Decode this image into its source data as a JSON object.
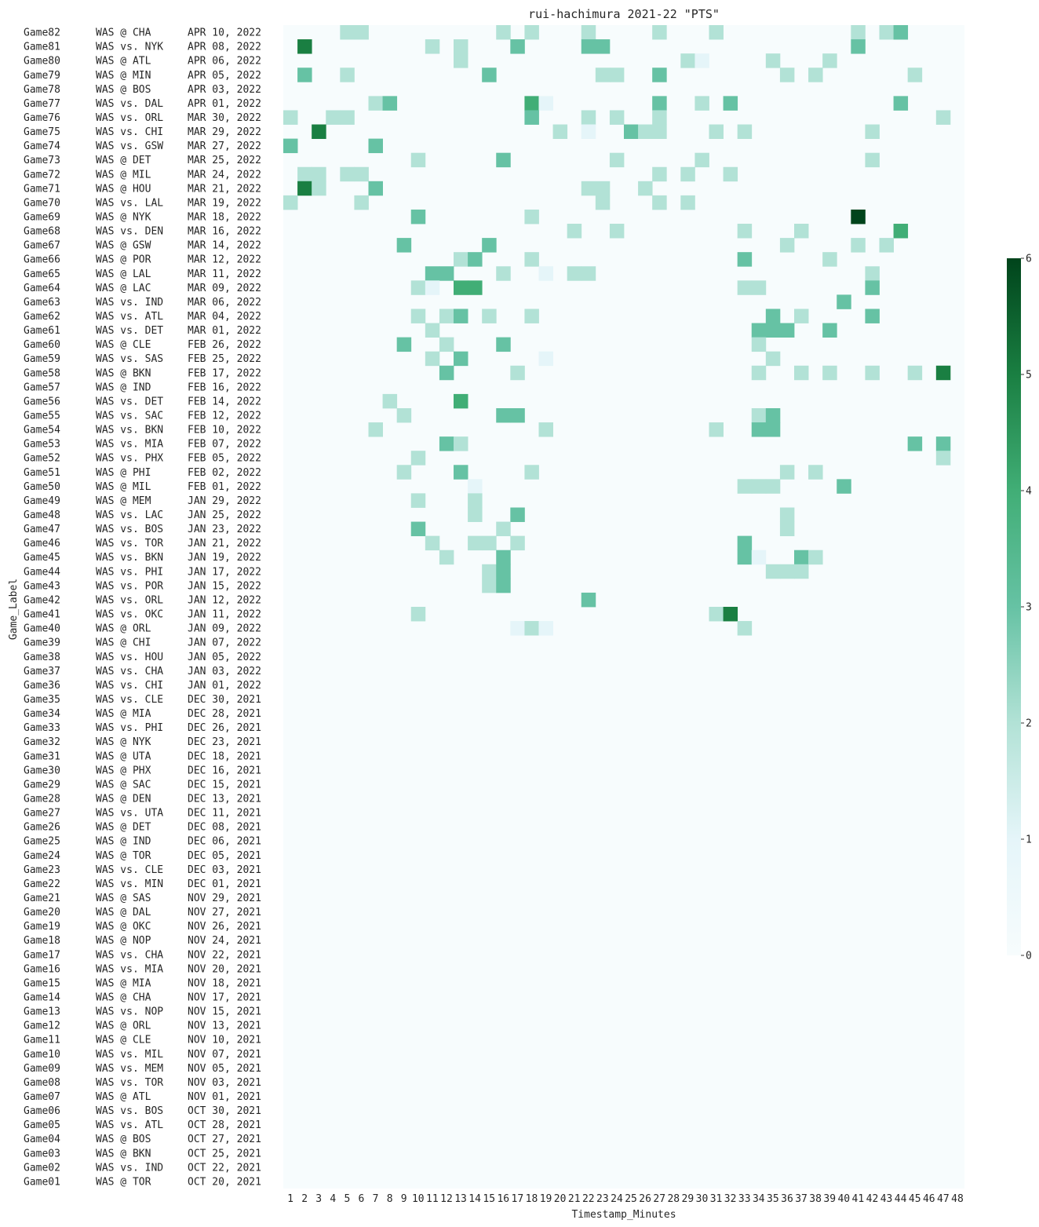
{
  "chart_data": {
    "type": "heatmap",
    "title": "rui-hachimura 2021-22 \"PTS\"",
    "xlabel": "Timestamp_Minutes",
    "ylabel": "Game_Label",
    "x": [
      1,
      2,
      3,
      4,
      5,
      6,
      7,
      8,
      9,
      10,
      11,
      12,
      13,
      14,
      15,
      16,
      17,
      18,
      19,
      20,
      21,
      22,
      23,
      24,
      25,
      26,
      27,
      28,
      29,
      30,
      31,
      32,
      33,
      34,
      35,
      36,
      37,
      38,
      39,
      40,
      41,
      42,
      43,
      44,
      45,
      46,
      47,
      48
    ],
    "rows": [
      {
        "label": "Game82",
        "matchup": "WAS @ CHA",
        "date": "APR 10, 2022"
      },
      {
        "label": "Game81",
        "matchup": "WAS vs. NYK",
        "date": "APR 08, 2022"
      },
      {
        "label": "Game80",
        "matchup": "WAS @ ATL",
        "date": "APR 06, 2022"
      },
      {
        "label": "Game79",
        "matchup": "WAS @ MIN",
        "date": "APR 05, 2022"
      },
      {
        "label": "Game78",
        "matchup": "WAS @ BOS",
        "date": "APR 03, 2022"
      },
      {
        "label": "Game77",
        "matchup": "WAS vs. DAL",
        "date": "APR 01, 2022"
      },
      {
        "label": "Game76",
        "matchup": "WAS vs. ORL",
        "date": "MAR 30, 2022"
      },
      {
        "label": "Game75",
        "matchup": "WAS vs. CHI",
        "date": "MAR 29, 2022"
      },
      {
        "label": "Game74",
        "matchup": "WAS vs. GSW",
        "date": "MAR 27, 2022"
      },
      {
        "label": "Game73",
        "matchup": "WAS @ DET",
        "date": "MAR 25, 2022"
      },
      {
        "label": "Game72",
        "matchup": "WAS @ MIL",
        "date": "MAR 24, 2022"
      },
      {
        "label": "Game71",
        "matchup": "WAS @ HOU",
        "date": "MAR 21, 2022"
      },
      {
        "label": "Game70",
        "matchup": "WAS vs. LAL",
        "date": "MAR 19, 2022"
      },
      {
        "label": "Game69",
        "matchup": "WAS @ NYK",
        "date": "MAR 18, 2022"
      },
      {
        "label": "Game68",
        "matchup": "WAS vs. DEN",
        "date": "MAR 16, 2022"
      },
      {
        "label": "Game67",
        "matchup": "WAS @ GSW",
        "date": "MAR 14, 2022"
      },
      {
        "label": "Game66",
        "matchup": "WAS @ POR",
        "date": "MAR 12, 2022"
      },
      {
        "label": "Game65",
        "matchup": "WAS @ LAL",
        "date": "MAR 11, 2022"
      },
      {
        "label": "Game64",
        "matchup": "WAS @ LAC",
        "date": "MAR 09, 2022"
      },
      {
        "label": "Game63",
        "matchup": "WAS vs. IND",
        "date": "MAR 06, 2022"
      },
      {
        "label": "Game62",
        "matchup": "WAS vs. ATL",
        "date": "MAR 04, 2022"
      },
      {
        "label": "Game61",
        "matchup": "WAS vs. DET",
        "date": "MAR 01, 2022"
      },
      {
        "label": "Game60",
        "matchup": "WAS @ CLE",
        "date": "FEB 26, 2022"
      },
      {
        "label": "Game59",
        "matchup": "WAS vs. SAS",
        "date": "FEB 25, 2022"
      },
      {
        "label": "Game58",
        "matchup": "WAS @ BKN",
        "date": "FEB 17, 2022"
      },
      {
        "label": "Game57",
        "matchup": "WAS @ IND",
        "date": "FEB 16, 2022"
      },
      {
        "label": "Game56",
        "matchup": "WAS vs. DET",
        "date": "FEB 14, 2022"
      },
      {
        "label": "Game55",
        "matchup": "WAS vs. SAC",
        "date": "FEB 12, 2022"
      },
      {
        "label": "Game54",
        "matchup": "WAS vs. BKN",
        "date": "FEB 10, 2022"
      },
      {
        "label": "Game53",
        "matchup": "WAS vs. MIA",
        "date": "FEB 07, 2022"
      },
      {
        "label": "Game52",
        "matchup": "WAS vs. PHX",
        "date": "FEB 05, 2022"
      },
      {
        "label": "Game51",
        "matchup": "WAS @ PHI",
        "date": "FEB 02, 2022"
      },
      {
        "label": "Game50",
        "matchup": "WAS @ MIL",
        "date": "FEB 01, 2022"
      },
      {
        "label": "Game49",
        "matchup": "WAS @ MEM",
        "date": "JAN 29, 2022"
      },
      {
        "label": "Game48",
        "matchup": "WAS vs. LAC",
        "date": "JAN 25, 2022"
      },
      {
        "label": "Game47",
        "matchup": "WAS vs. BOS",
        "date": "JAN 23, 2022"
      },
      {
        "label": "Game46",
        "matchup": "WAS vs. TOR",
        "date": "JAN 21, 2022"
      },
      {
        "label": "Game45",
        "matchup": "WAS vs. BKN",
        "date": "JAN 19, 2022"
      },
      {
        "label": "Game44",
        "matchup": "WAS vs. PHI",
        "date": "JAN 17, 2022"
      },
      {
        "label": "Game43",
        "matchup": "WAS vs. POR",
        "date": "JAN 15, 2022"
      },
      {
        "label": "Game42",
        "matchup": "WAS vs. ORL",
        "date": "JAN 12, 2022"
      },
      {
        "label": "Game41",
        "matchup": "WAS vs. OKC",
        "date": "JAN 11, 2022"
      },
      {
        "label": "Game40",
        "matchup": "WAS @ ORL",
        "date": "JAN 09, 2022"
      },
      {
        "label": "Game39",
        "matchup": "WAS @ CHI",
        "date": "JAN 07, 2022"
      },
      {
        "label": "Game38",
        "matchup": "WAS vs. HOU",
        "date": "JAN 05, 2022"
      },
      {
        "label": "Game37",
        "matchup": "WAS vs. CHA",
        "date": "JAN 03, 2022"
      },
      {
        "label": "Game36",
        "matchup": "WAS vs. CHI",
        "date": "JAN 01, 2022"
      },
      {
        "label": "Game35",
        "matchup": "WAS vs. CLE",
        "date": "DEC 30, 2021"
      },
      {
        "label": "Game34",
        "matchup": "WAS @ MIA",
        "date": "DEC 28, 2021"
      },
      {
        "label": "Game33",
        "matchup": "WAS vs. PHI",
        "date": "DEC 26, 2021"
      },
      {
        "label": "Game32",
        "matchup": "WAS @ NYK",
        "date": "DEC 23, 2021"
      },
      {
        "label": "Game31",
        "matchup": "WAS @ UTA",
        "date": "DEC 18, 2021"
      },
      {
        "label": "Game30",
        "matchup": "WAS @ PHX",
        "date": "DEC 16, 2021"
      },
      {
        "label": "Game29",
        "matchup": "WAS @ SAC",
        "date": "DEC 15, 2021"
      },
      {
        "label": "Game28",
        "matchup": "WAS @ DEN",
        "date": "DEC 13, 2021"
      },
      {
        "label": "Game27",
        "matchup": "WAS vs. UTA",
        "date": "DEC 11, 2021"
      },
      {
        "label": "Game26",
        "matchup": "WAS @ DET",
        "date": "DEC 08, 2021"
      },
      {
        "label": "Game25",
        "matchup": "WAS @ IND",
        "date": "DEC 06, 2021"
      },
      {
        "label": "Game24",
        "matchup": "WAS @ TOR",
        "date": "DEC 05, 2021"
      },
      {
        "label": "Game23",
        "matchup": "WAS vs. CLE",
        "date": "DEC 03, 2021"
      },
      {
        "label": "Game22",
        "matchup": "WAS vs. MIN",
        "date": "DEC 01, 2021"
      },
      {
        "label": "Game21",
        "matchup": "WAS @ SAS",
        "date": "NOV 29, 2021"
      },
      {
        "label": "Game20",
        "matchup": "WAS @ DAL",
        "date": "NOV 27, 2021"
      },
      {
        "label": "Game19",
        "matchup": "WAS @ OKC",
        "date": "NOV 26, 2021"
      },
      {
        "label": "Game18",
        "matchup": "WAS @ NOP",
        "date": "NOV 24, 2021"
      },
      {
        "label": "Game17",
        "matchup": "WAS vs. CHA",
        "date": "NOV 22, 2021"
      },
      {
        "label": "Game16",
        "matchup": "WAS vs. MIA",
        "date": "NOV 20, 2021"
      },
      {
        "label": "Game15",
        "matchup": "WAS @ MIA",
        "date": "NOV 18, 2021"
      },
      {
        "label": "Game14",
        "matchup": "WAS @ CHA",
        "date": "NOV 17, 2021"
      },
      {
        "label": "Game13",
        "matchup": "WAS vs. NOP",
        "date": "NOV 15, 2021"
      },
      {
        "label": "Game12",
        "matchup": "WAS @ ORL",
        "date": "NOV 13, 2021"
      },
      {
        "label": "Game11",
        "matchup": "WAS @ CLE",
        "date": "NOV 10, 2021"
      },
      {
        "label": "Game10",
        "matchup": "WAS vs. MIL",
        "date": "NOV 07, 2021"
      },
      {
        "label": "Game09",
        "matchup": "WAS vs. MEM",
        "date": "NOV 05, 2021"
      },
      {
        "label": "Game08",
        "matchup": "WAS vs. TOR",
        "date": "NOV 03, 2021"
      },
      {
        "label": "Game07",
        "matchup": "WAS @ ATL",
        "date": "NOV 01, 2021"
      },
      {
        "label": "Game06",
        "matchup": "WAS vs. BOS",
        "date": "OCT 30, 2021"
      },
      {
        "label": "Game05",
        "matchup": "WAS vs. ATL",
        "date": "OCT 28, 2021"
      },
      {
        "label": "Game04",
        "matchup": "WAS @ BOS",
        "date": "OCT 27, 2021"
      },
      {
        "label": "Game03",
        "matchup": "WAS @ BKN",
        "date": "OCT 25, 2021"
      },
      {
        "label": "Game02",
        "matchup": "WAS vs. IND",
        "date": "OCT 22, 2021"
      },
      {
        "label": "Game01",
        "matchup": "WAS @ TOR",
        "date": "OCT 20, 2021"
      }
    ],
    "cells": {
      "Game82": {
        "5": 2,
        "6": 2,
        "16": 2,
        "18": 2,
        "22": 2,
        "27": 2,
        "31": 2,
        "41": 2,
        "43": 2,
        "44": 3
      },
      "Game81": {
        "2": 5,
        "11": 2,
        "13": 2,
        "17": 3,
        "22": 3,
        "23": 3,
        "41": 3
      },
      "Game80": {
        "13": 2,
        "29": 2,
        "30": 1,
        "35": 2,
        "39": 2
      },
      "Game79": {
        "2": 3,
        "5": 2,
        "15": 3,
        "23": 2,
        "24": 2,
        "27": 3,
        "36": 2,
        "38": 2,
        "45": 2
      },
      "Game77": {
        "7": 2,
        "8": 3,
        "18": 4,
        "19": 1,
        "27": 3,
        "30": 2,
        "32": 3,
        "44": 3
      },
      "Game76": {
        "1": 2,
        "4": 2,
        "5": 2,
        "18": 3,
        "22": 2,
        "24": 2,
        "27": 2,
        "47": 2
      },
      "Game75": {
        "3": 5,
        "20": 2,
        "22": 1,
        "25": 3,
        "26": 2,
        "27": 2,
        "31": 2,
        "33": 2,
        "42": 2
      },
      "Game74": {
        "1": 3,
        "7": 3
      },
      "Game73": {
        "10": 2,
        "16": 3,
        "24": 2,
        "30": 2,
        "42": 2
      },
      "Game72": {
        "2": 2,
        "3": 2,
        "5": 2,
        "6": 2,
        "27": 2,
        "29": 2,
        "32": 2
      },
      "Game71": {
        "2": 5,
        "3": 2,
        "7": 3,
        "22": 2,
        "23": 2,
        "26": 2
      },
      "Game70": {
        "1": 2,
        "6": 2,
        "23": 2,
        "27": 2,
        "29": 2
      },
      "Game69": {
        "10": 3,
        "18": 2,
        "41": 6
      },
      "Game68": {
        "21": 2,
        "24": 2,
        "33": 2,
        "37": 2,
        "44": 4
      },
      "Game67": {
        "9": 3,
        "15": 3,
        "36": 2,
        "41": 2,
        "43": 2
      },
      "Game66": {
        "13": 2,
        "14": 3,
        "18": 2,
        "33": 3,
        "39": 2
      },
      "Game65": {
        "11": 3,
        "12": 3,
        "16": 2,
        "19": 1,
        "21": 2,
        "22": 2,
        "42": 2
      },
      "Game64": {
        "10": 2,
        "11": 1,
        "13": 4,
        "14": 4,
        "33": 2,
        "34": 2,
        "42": 3
      },
      "Game63": {
        "40": 3
      },
      "Game62": {
        "10": 2,
        "12": 2,
        "13": 3,
        "15": 2,
        "18": 2,
        "35": 3,
        "37": 2,
        "42": 3
      },
      "Game61": {
        "11": 2,
        "34": 3,
        "35": 3,
        "36": 3,
        "39": 3
      },
      "Game60": {
        "9": 3,
        "12": 2,
        "16": 3,
        "34": 2
      },
      "Game59": {
        "11": 2,
        "13": 3,
        "19": 1,
        "35": 2
      },
      "Game58": {
        "12": 3,
        "17": 2,
        "34": 2,
        "37": 2,
        "39": 2,
        "42": 2,
        "45": 2,
        "47": 5
      },
      "Game56": {
        "8": 2,
        "13": 4
      },
      "Game55": {
        "9": 2,
        "16": 3,
        "17": 3,
        "34": 2,
        "35": 3
      },
      "Game54": {
        "7": 2,
        "19": 2,
        "31": 2,
        "34": 3,
        "35": 3
      },
      "Game53": {
        "12": 3,
        "13": 2,
        "45": 3,
        "47": 3
      },
      "Game52": {
        "10": 2,
        "47": 2
      },
      "Game51": {
        "9": 2,
        "13": 3,
        "18": 2,
        "36": 2,
        "38": 2
      },
      "Game50": {
        "14": 1,
        "33": 2,
        "34": 2,
        "35": 2,
        "40": 3
      },
      "Game49": {
        "10": 2,
        "14": 2
      },
      "Game48": {
        "14": 2,
        "17": 3,
        "36": 2
      },
      "Game47": {
        "10": 3,
        "16": 2,
        "36": 2
      },
      "Game46": {
        "11": 2,
        "14": 2,
        "15": 2,
        "17": 2,
        "33": 3
      },
      "Game45": {
        "12": 2,
        "16": 3,
        "33": 3,
        "34": 1,
        "37": 3,
        "38": 2
      },
      "Game44": {
        "15": 2,
        "16": 3,
        "35": 2,
        "36": 2,
        "37": 2
      },
      "Game43": {
        "15": 2,
        "16": 3
      },
      "Game42": {
        "22": 3
      },
      "Game41": {
        "10": 2,
        "31": 2,
        "32": 5
      },
      "Game40": {
        "17": 1,
        "18": 2,
        "19": 1,
        "33": 2
      }
    },
    "colorbar": {
      "min": 0,
      "max": 6,
      "ticks": [
        0,
        1,
        2,
        3,
        4,
        5,
        6
      ]
    },
    "colors": [
      "#f7fcfd",
      "#e5f5f9",
      "#b2e2d6",
      "#66c2a4",
      "#41ae76",
      "#1a7f42",
      "#00441b"
    ]
  }
}
